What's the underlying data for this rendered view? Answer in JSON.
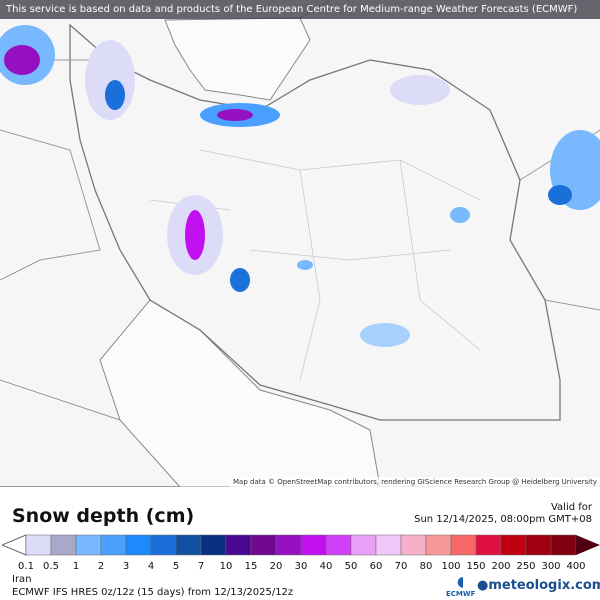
{
  "notice": "This service is based on data and products of the European Centre for Medium-range Weather Forecasts (ECMWF)",
  "attribution": "Map data © OpenStreetMap contributors, rendering GIScience Research Group @ Heidelberg University",
  "title": "Snow depth (cm)",
  "valid_label": "Valid for",
  "valid_time": "Sun 12/14/2025, 08:00pm GMT+08",
  "region": "Iran",
  "model": "ECMWF IFS HRES 0z/12z (15 days) from  12/13/2025/12z",
  "ecmwf_logo": "ECMWF",
  "brand": "meteologix.com",
  "legend": {
    "ticks": [
      "0.1",
      "0.5",
      "1",
      "2",
      "3",
      "4",
      "5",
      "7",
      "10",
      "15",
      "20",
      "30",
      "40",
      "50",
      "60",
      "70",
      "80",
      "100",
      "150",
      "200",
      "250",
      "300",
      "400"
    ],
    "colors": [
      "#dcdcf8",
      "#a8a8c8",
      "#78b8ff",
      "#4aa0ff",
      "#1e88ff",
      "#1a70d8",
      "#1050a0",
      "#083080",
      "#4a0890",
      "#700890",
      "#9410c0",
      "#c010f0",
      "#d040f8",
      "#e8a0f8",
      "#f2c8fa",
      "#f8b0c8",
      "#f89898",
      "#f86868",
      "#e01040",
      "#c00010",
      "#a00010",
      "#800010"
    ],
    "under_color": "#ffffff",
    "over_color": "#500010"
  }
}
